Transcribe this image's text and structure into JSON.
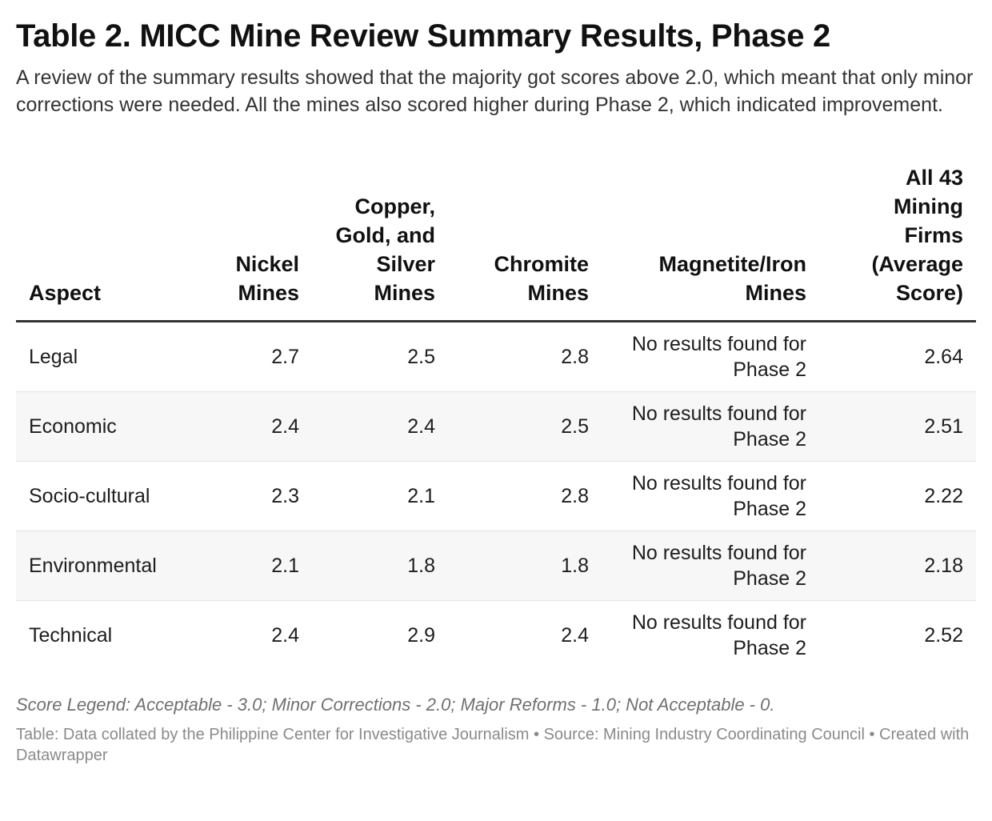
{
  "header": {
    "title": "Table 2. MICC Mine Review Summary Results, Phase 2",
    "subtitle": "A review of the summary results showed that the majority got scores above 2.0, which meant that only minor corrections were needed. All the mines also scored higher during Phase 2, which indicated improvement."
  },
  "table": {
    "columns": [
      "Aspect",
      "Nickel Mines",
      "Copper, Gold, and Silver Mines",
      "Chromite Mines",
      "Magnetite/Iron Mines",
      "All 43 Mining Firms (Average Score)"
    ],
    "rows": [
      [
        "Legal",
        "2.7",
        "2.5",
        "2.8",
        "No results found for Phase 2",
        "2.64"
      ],
      [
        "Economic",
        "2.4",
        "2.4",
        "2.5",
        "No results found for Phase 2",
        "2.51"
      ],
      [
        "Socio-cultural",
        "2.3",
        "2.1",
        "2.8",
        "No results found for Phase 2",
        "2.22"
      ],
      [
        "Environmental",
        "2.1",
        "1.8",
        "1.8",
        "No results found for Phase 2",
        "2.18"
      ],
      [
        "Technical",
        "2.4",
        "2.9",
        "2.4",
        "No results found for Phase 2",
        "2.52"
      ]
    ]
  },
  "footer": {
    "legend": "Score Legend: Acceptable - 3.0; Minor Corrections - 2.0; Major Reforms - 1.0; Not Acceptable - 0.",
    "source": "Table: Data collated by the Philippine Center for Investigative Journalism • Source: Mining Industry Coordinating Council • Created with Datawrapper"
  }
}
